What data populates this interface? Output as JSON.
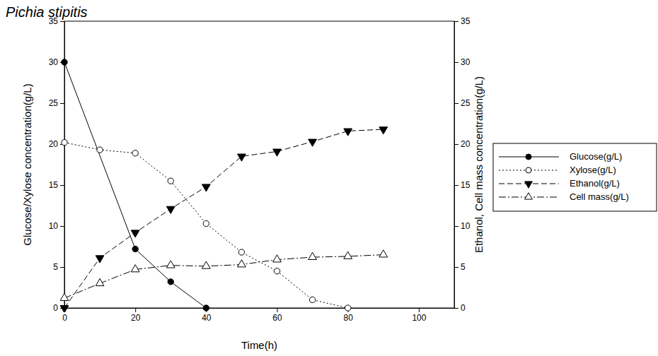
{
  "chart_data": {
    "type": "line",
    "title": "Pichia stipitis",
    "x_label": "Time(h)",
    "y_label": "Glucose/Xylose concentration(g/L)",
    "y2_label": "Ethanol, Cell mass concentration(g/L)",
    "xlim": [
      0,
      110
    ],
    "xticks": [
      0,
      20,
      40,
      60,
      80,
      100
    ],
    "ylim": [
      0,
      35
    ],
    "yticks": [
      0,
      5,
      10,
      15,
      20,
      25,
      30,
      35
    ],
    "y2lim": [
      0,
      35
    ],
    "y2ticks": [
      0,
      5,
      10,
      15,
      20,
      25,
      30,
      35
    ],
    "legend": "right",
    "series": [
      {
        "name": "Glucose(g/L)",
        "color": "#000000",
        "marker": "filled-circle",
        "line_style": "solid",
        "x": [
          0,
          20,
          30,
          40
        ],
        "values": [
          30,
          7.2,
          3.2,
          0
        ]
      },
      {
        "name": "Xylose(g/L)",
        "color": "#000000",
        "marker": "open-circle",
        "line_style": "dotted",
        "x": [
          0,
          10,
          20,
          30,
          40,
          50,
          60,
          70,
          80
        ],
        "values": [
          20.2,
          19.3,
          18.9,
          15.5,
          10.3,
          6.8,
          4.5,
          1.0,
          0
        ]
      },
      {
        "name": "Ethanol(g/L)",
        "color": "#000000",
        "marker": "filled-triangle-down",
        "line_style": "dashed",
        "axis": "y2",
        "x": [
          0,
          10,
          20,
          30,
          40,
          50,
          60,
          70,
          80,
          90
        ],
        "values": [
          0,
          6.1,
          9.2,
          12.1,
          14.8,
          18.5,
          19.1,
          20.3,
          21.6,
          21.8
        ]
      },
      {
        "name": "Cell mass(g/L)",
        "color": "#000000",
        "marker": "open-triangle-up",
        "line_style": "dashdot",
        "axis": "y2",
        "x": [
          0,
          10,
          20,
          30,
          40,
          50,
          60,
          70,
          80,
          90
        ],
        "values": [
          1.2,
          3.0,
          4.7,
          5.2,
          5.1,
          5.3,
          5.9,
          6.2,
          6.3,
          6.5
        ]
      }
    ]
  }
}
